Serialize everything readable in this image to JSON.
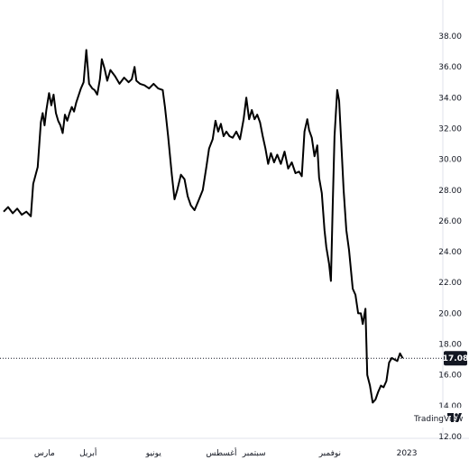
{
  "chart_data": {
    "type": "line",
    "title": "",
    "xlabel": "",
    "ylabel": "",
    "ylim": [
      12.0,
      38.0
    ],
    "y_ticks": [
      "38.00",
      "36.00",
      "34.00",
      "32.00",
      "30.00",
      "28.00",
      "26.00",
      "24.00",
      "22.00",
      "20.00",
      "18.00",
      "16.00",
      "14.00",
      "12.00"
    ],
    "x_ticks": [
      {
        "label": "مارس",
        "t": 0.09
      },
      {
        "label": "أبريل",
        "t": 0.186
      },
      {
        "label": "يونيو",
        "t": 0.33
      },
      {
        "label": "أغسطس",
        "t": 0.479
      },
      {
        "label": "سبتمبر",
        "t": 0.551
      },
      {
        "label": "نوفمبر",
        "t": 0.718
      },
      {
        "label": "2023",
        "t": 0.887
      }
    ],
    "last_value_label": "17.08",
    "last_value": 17.08,
    "grid": false,
    "watermark": "TradingView",
    "series": [
      {
        "name": "",
        "color": "#000000",
        "points": [
          [
            0.0,
            26.6
          ],
          [
            0.01,
            26.9
          ],
          [
            0.02,
            26.5
          ],
          [
            0.03,
            26.8
          ],
          [
            0.04,
            26.4
          ],
          [
            0.05,
            26.6
          ],
          [
            0.06,
            26.3
          ],
          [
            0.065,
            28.4
          ],
          [
            0.075,
            29.5
          ],
          [
            0.082,
            32.4
          ],
          [
            0.086,
            33.0
          ],
          [
            0.09,
            32.2
          ],
          [
            0.094,
            33.2
          ],
          [
            0.1,
            34.3
          ],
          [
            0.105,
            33.5
          ],
          [
            0.11,
            34.2
          ],
          [
            0.115,
            33.0
          ],
          [
            0.12,
            32.5
          ],
          [
            0.125,
            32.2
          ],
          [
            0.13,
            31.7
          ],
          [
            0.135,
            32.9
          ],
          [
            0.14,
            32.5
          ],
          [
            0.145,
            33.0
          ],
          [
            0.15,
            33.4
          ],
          [
            0.155,
            33.1
          ],
          [
            0.16,
            33.7
          ],
          [
            0.17,
            34.6
          ],
          [
            0.176,
            35.0
          ],
          [
            0.182,
            37.1
          ],
          [
            0.188,
            34.9
          ],
          [
            0.195,
            34.6
          ],
          [
            0.2,
            34.5
          ],
          [
            0.206,
            34.2
          ],
          [
            0.212,
            35.2
          ],
          [
            0.216,
            36.5
          ],
          [
            0.222,
            35.9
          ],
          [
            0.228,
            35.1
          ],
          [
            0.235,
            35.8
          ],
          [
            0.245,
            35.4
          ],
          [
            0.255,
            34.9
          ],
          [
            0.265,
            35.3
          ],
          [
            0.275,
            35.0
          ],
          [
            0.282,
            35.2
          ],
          [
            0.288,
            36.0
          ],
          [
            0.292,
            35.1
          ],
          [
            0.3,
            34.9
          ],
          [
            0.31,
            34.8
          ],
          [
            0.32,
            34.6
          ],
          [
            0.33,
            34.9
          ],
          [
            0.34,
            34.6
          ],
          [
            0.35,
            34.5
          ],
          [
            0.355,
            33.4
          ],
          [
            0.362,
            31.5
          ],
          [
            0.37,
            29.0
          ],
          [
            0.376,
            27.4
          ],
          [
            0.382,
            28.0
          ],
          [
            0.39,
            29.0
          ],
          [
            0.398,
            28.7
          ],
          [
            0.405,
            27.6
          ],
          [
            0.412,
            27.0
          ],
          [
            0.42,
            26.7
          ],
          [
            0.43,
            27.4
          ],
          [
            0.438,
            28.0
          ],
          [
            0.446,
            29.5
          ],
          [
            0.452,
            30.7
          ],
          [
            0.46,
            31.3
          ],
          [
            0.466,
            32.5
          ],
          [
            0.472,
            31.8
          ],
          [
            0.478,
            32.3
          ],
          [
            0.484,
            31.5
          ],
          [
            0.49,
            31.8
          ],
          [
            0.497,
            31.5
          ],
          [
            0.504,
            31.4
          ],
          [
            0.512,
            31.8
          ],
          [
            0.52,
            31.3
          ],
          [
            0.528,
            32.6
          ],
          [
            0.534,
            34.0
          ],
          [
            0.54,
            32.6
          ],
          [
            0.546,
            33.2
          ],
          [
            0.552,
            32.6
          ],
          [
            0.558,
            32.9
          ],
          [
            0.564,
            32.4
          ],
          [
            0.57,
            31.5
          ],
          [
            0.576,
            30.7
          ],
          [
            0.582,
            29.7
          ],
          [
            0.588,
            30.4
          ],
          [
            0.595,
            29.8
          ],
          [
            0.602,
            30.3
          ],
          [
            0.61,
            29.7
          ],
          [
            0.618,
            30.5
          ],
          [
            0.626,
            29.4
          ],
          [
            0.634,
            29.8
          ],
          [
            0.642,
            29.1
          ],
          [
            0.65,
            29.2
          ],
          [
            0.656,
            28.9
          ],
          [
            0.662,
            31.8
          ],
          [
            0.668,
            32.6
          ],
          [
            0.672,
            31.9
          ],
          [
            0.678,
            31.4
          ],
          [
            0.684,
            30.2
          ],
          [
            0.69,
            30.9
          ],
          [
            0.694,
            28.8
          ],
          [
            0.7,
            27.8
          ],
          [
            0.706,
            25.4
          ],
          [
            0.71,
            24.3
          ],
          [
            0.716,
            23.2
          ],
          [
            0.72,
            22.1
          ],
          [
            0.724,
            27.0
          ],
          [
            0.728,
            31.5
          ],
          [
            0.734,
            34.5
          ],
          [
            0.738,
            33.8
          ],
          [
            0.742,
            31.5
          ],
          [
            0.748,
            28.0
          ],
          [
            0.754,
            25.4
          ],
          [
            0.76,
            24.1
          ],
          [
            0.768,
            21.6
          ],
          [
            0.774,
            21.2
          ],
          [
            0.78,
            20.0
          ],
          [
            0.786,
            20.0
          ],
          [
            0.79,
            19.3
          ],
          [
            0.796,
            20.3
          ],
          [
            0.8,
            16.0
          ],
          [
            0.806,
            15.3
          ],
          [
            0.812,
            14.2
          ],
          [
            0.818,
            14.4
          ],
          [
            0.824,
            14.9
          ],
          [
            0.83,
            15.3
          ],
          [
            0.836,
            15.2
          ],
          [
            0.842,
            15.6
          ],
          [
            0.848,
            16.8
          ],
          [
            0.854,
            17.1
          ],
          [
            0.86,
            17.0
          ],
          [
            0.866,
            16.9
          ],
          [
            0.872,
            17.4
          ],
          [
            0.878,
            17.08
          ]
        ]
      }
    ]
  }
}
